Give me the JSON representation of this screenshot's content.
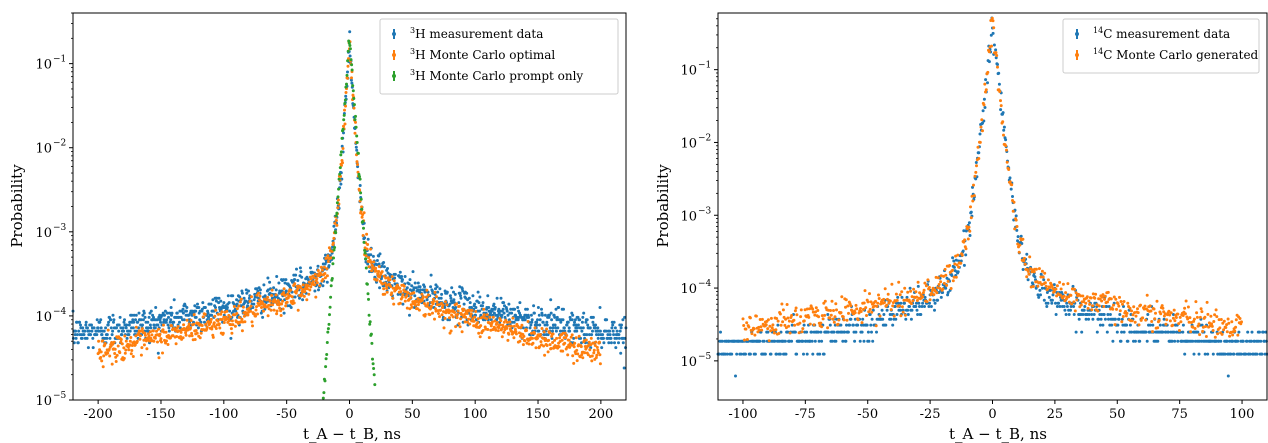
{
  "colors": {
    "measurement": "#1f77b4",
    "monte_carlo": "#ff7f0e",
    "prompt_only": "#2ca02c"
  },
  "chart_data": [
    {
      "type": "scatter",
      "xlabel": "t_A − t_B, ns",
      "ylabel": "Probability",
      "xscale": "linear",
      "yscale": "log",
      "xlim": [
        -220,
        220
      ],
      "ylim": [
        1e-05,
        0.4
      ],
      "xticks": [
        -200,
        -150,
        -100,
        -50,
        0,
        50,
        100,
        150,
        200
      ],
      "xtick_labels": [
        "-200",
        "-150",
        "-100",
        "-50",
        "0",
        "50",
        "100",
        "150",
        "200"
      ],
      "yticks": [
        1e-05,
        0.0001,
        0.001,
        0.01,
        0.1
      ],
      "ytick_labels": [
        "10",
        "10",
        "10",
        "10",
        "10"
      ],
      "ytick_exponents": [
        "−5",
        "−4",
        "−3",
        "−2",
        "−1"
      ],
      "grid": false,
      "legend_position": "top-right",
      "series": [
        {
          "name": "3H measurement data",
          "legend_sup": "3",
          "legend_text": "H measurement data",
          "color": "#1f77b4",
          "model": "measure3H",
          "x_range": [
            -220,
            220
          ],
          "step": 0.35,
          "peak": 0.2,
          "floor": 3.8e-05,
          "noise": 0.22,
          "quantum": 6e-06
        },
        {
          "name": "3H Monte Carlo optimal",
          "legend_sup": "3",
          "legend_text": "H Monte Carlo optimal",
          "color": "#ff7f0e",
          "model": "mc3H",
          "x_range": [
            -200,
            200
          ],
          "step": 0.4,
          "peak": 0.21,
          "noise": 0.18
        },
        {
          "name": "3H Monte Carlo prompt only",
          "legend_sup": "3",
          "legend_text": "H Monte Carlo prompt only",
          "color": "#2ca02c",
          "model": "prompt3H",
          "x_range": [
            -24,
            24
          ],
          "step": 0.45,
          "peak": 0.21,
          "noise": 0.1
        }
      ]
    },
    {
      "type": "scatter",
      "xlabel": "t_A − t_B, ns",
      "ylabel": "Probability",
      "xscale": "linear",
      "yscale": "log",
      "xlim": [
        -110,
        110
      ],
      "ylim": [
        2.9e-06,
        0.6
      ],
      "xticks": [
        -100,
        -75,
        -50,
        -25,
        0,
        25,
        50,
        75,
        100
      ],
      "xtick_labels": [
        "-100",
        "-75",
        "-50",
        "-25",
        "0",
        "25",
        "50",
        "75",
        "100"
      ],
      "yticks": [
        1e-05,
        0.0001,
        0.001,
        0.01,
        0.1
      ],
      "ytick_labels": [
        "10",
        "10",
        "10",
        "10",
        "10"
      ],
      "ytick_exponents": [
        "−5",
        "−4",
        "−3",
        "−2",
        "−1"
      ],
      "grid": false,
      "legend_position": "top-right",
      "series": [
        {
          "name": "14C measurement data",
          "legend_sup": "14",
          "legend_text": "C measurement data",
          "color": "#1f77b4",
          "model": "measure14C",
          "x_range": [
            -110,
            110
          ],
          "step": 0.25,
          "peak": 0.42,
          "floor": 1.2e-05,
          "noise": 0.25,
          "quantum": 6.2e-06
        },
        {
          "name": "14C Monte Carlo generated",
          "legend_sup": "14",
          "legend_text": "C Monte Carlo generated",
          "color": "#ff7f0e",
          "model": "mc14C",
          "x_range": [
            -100,
            100
          ],
          "step": 0.3,
          "peak": 0.42,
          "noise": 0.22
        }
      ]
    }
  ]
}
